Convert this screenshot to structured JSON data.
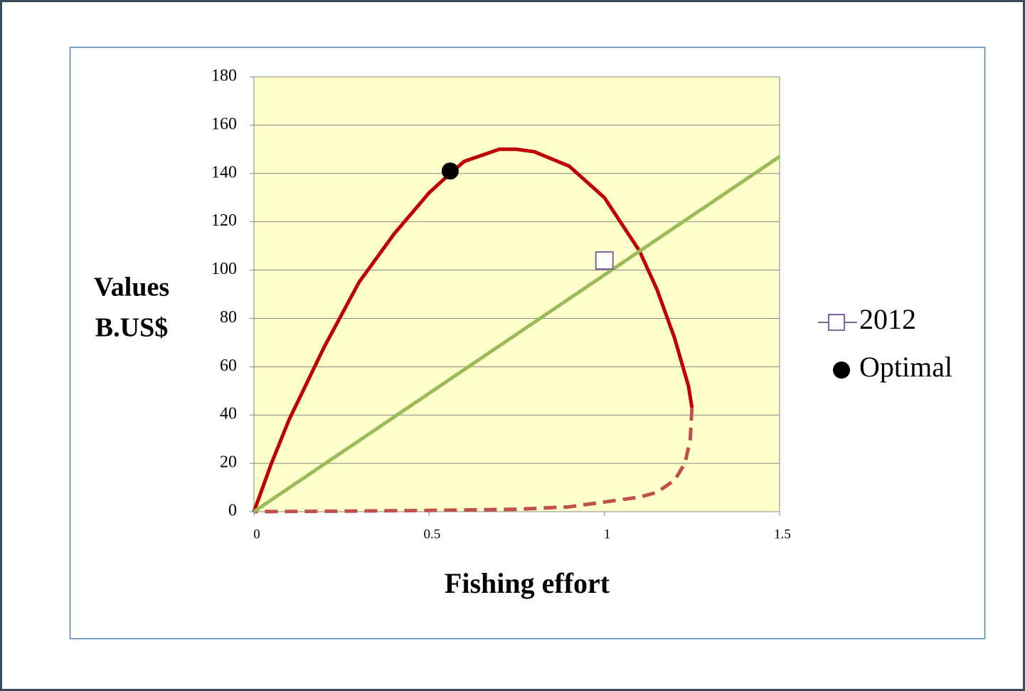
{
  "chart_data": {
    "type": "line",
    "xlabel": "Fishing effort",
    "ylabel": [
      "Values",
      "B.US$"
    ],
    "xlim": [
      0,
      1.5
    ],
    "xticks": [
      0,
      0.5,
      1,
      1.5
    ],
    "ylim": [
      0,
      180
    ],
    "yticks": [
      0,
      20,
      40,
      60,
      80,
      100,
      120,
      140,
      160,
      180
    ],
    "grid": true,
    "legend": "right",
    "plot_background": "#ffffcc",
    "series": [
      {
        "color": "#c00000",
        "linestyle": "solid",
        "x": [
          0,
          0.05,
          0.1,
          0.2,
          0.3,
          0.4,
          0.5,
          0.56,
          0.6,
          0.7,
          0.75,
          0.8,
          0.9,
          1.0,
          1.1,
          1.15,
          1.2,
          1.24,
          1.25
        ],
        "values": [
          0,
          20,
          38,
          68,
          95,
          115,
          132,
          140,
          145,
          150,
          150,
          149,
          143,
          130,
          108,
          92,
          72,
          52,
          43
        ]
      },
      {
        "color": "#c0504d",
        "linestyle": "dashed",
        "x": [
          1.25,
          1.245,
          1.23,
          1.2,
          1.15,
          1.1,
          1.0,
          0.9,
          0.75,
          0.5,
          0.25,
          0
        ],
        "values": [
          43,
          30,
          20,
          13,
          8,
          6,
          4,
          2,
          1,
          0.5,
          0.2,
          0
        ]
      },
      {
        "color": "#9bbb59",
        "linestyle": "solid",
        "x": [
          0,
          1.5
        ],
        "values": [
          0,
          147
        ]
      },
      {
        "name": "2012",
        "color": "#8064a2",
        "marker": "square",
        "x": [
          1.0
        ],
        "values": [
          104
        ]
      },
      {
        "name": "Optimal",
        "color": "#000000",
        "marker": "circle",
        "x": [
          0.56
        ],
        "values": [
          141
        ]
      }
    ]
  }
}
